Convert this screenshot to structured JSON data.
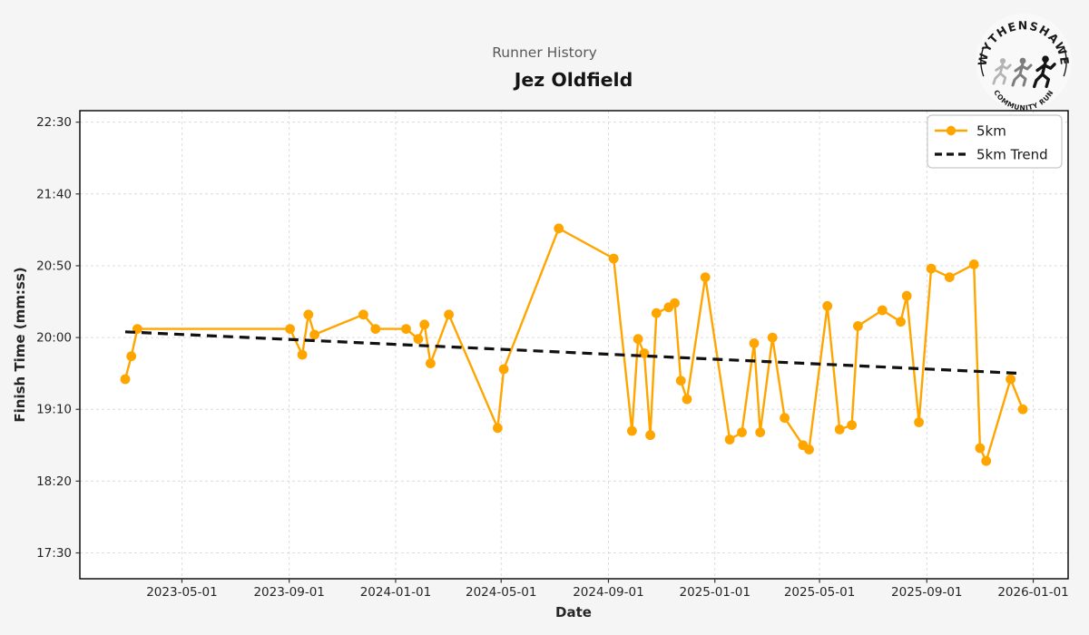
{
  "header": {
    "suptitle": "Runner History",
    "title": "Jez Oldfield"
  },
  "logo": {
    "top_text": "WYTHENSHAWE",
    "bottom_text": "COMMUNITY RUN"
  },
  "legend": {
    "items": [
      {
        "label": "5km",
        "style": "line-marker",
        "color": "#FFA500"
      },
      {
        "label": "5km Trend",
        "style": "dashed",
        "color": "#000000"
      }
    ]
  },
  "colors": {
    "figure_background": "#f5f5f6",
    "plot_background": "#ffffff",
    "grid": "#dcdcdc",
    "spine": "#000000",
    "series": "#FFA500",
    "trend": "#111111",
    "suptitle": "#595959",
    "title": "#141414"
  },
  "chart_data": {
    "type": "line",
    "title": "Jez Oldfield",
    "subtitle": "Runner History",
    "xlabel": "Date",
    "ylabel": "Finish Time (mm:ss)",
    "grid": true,
    "legend_position": "upper right",
    "x_ticks": [
      "2023-05-01",
      "2023-09-01",
      "2024-01-01",
      "2024-05-01",
      "2024-09-01",
      "2025-01-01",
      "2025-05-01",
      "2025-09-01",
      "2026-01-01"
    ],
    "y_ticks": [
      "17:30",
      "18:20",
      "19:10",
      "20:00",
      "20:50",
      "21:40",
      "22:30"
    ],
    "xlim": [
      "2023-01-04",
      "2026-02-10"
    ],
    "ylim_mmss": [
      "17:12",
      "22:38"
    ],
    "series": [
      {
        "name": "5km",
        "color": "#FFA500",
        "style": "solid-markers",
        "points": [
          [
            "2023-02-25",
            "19:31"
          ],
          [
            "2023-03-04",
            "19:47"
          ],
          [
            "2023-03-11",
            "20:06"
          ],
          [
            "2023-09-02",
            "20:06"
          ],
          [
            "2023-09-16",
            "19:48"
          ],
          [
            "2023-09-23",
            "20:16"
          ],
          [
            "2023-09-30",
            "20:02"
          ],
          [
            "2023-11-25",
            "20:16"
          ],
          [
            "2023-12-09",
            "20:06"
          ],
          [
            "2024-01-13",
            "20:06"
          ],
          [
            "2024-01-27",
            "19:59"
          ],
          [
            "2024-02-03",
            "20:09"
          ],
          [
            "2024-02-10",
            "19:42"
          ],
          [
            "2024-03-02",
            "20:16"
          ],
          [
            "2024-04-27",
            "18:57"
          ],
          [
            "2024-05-04",
            "19:38"
          ],
          [
            "2024-07-06",
            "21:16"
          ],
          [
            "2024-09-07",
            "20:55"
          ],
          [
            "2024-09-28",
            "18:55"
          ],
          [
            "2024-10-05",
            "19:59"
          ],
          [
            "2024-10-12",
            "19:49"
          ],
          [
            "2024-10-19",
            "18:52"
          ],
          [
            "2024-10-26",
            "20:17"
          ],
          [
            "2024-11-09",
            "20:21"
          ],
          [
            "2024-11-16",
            "20:24"
          ],
          [
            "2024-11-23",
            "19:30"
          ],
          [
            "2024-11-30",
            "19:17"
          ],
          [
            "2024-12-21",
            "20:42"
          ],
          [
            "2025-01-18",
            "18:49"
          ],
          [
            "2025-02-01",
            "18:54"
          ],
          [
            "2025-02-15",
            "19:56"
          ],
          [
            "2025-02-22",
            "18:54"
          ],
          [
            "2025-03-08",
            "20:00"
          ],
          [
            "2025-03-22",
            "19:04"
          ],
          [
            "2025-04-12",
            "18:45"
          ],
          [
            "2025-04-19",
            "18:42"
          ],
          [
            "2025-05-10",
            "20:22"
          ],
          [
            "2025-05-24",
            "18:56"
          ],
          [
            "2025-06-07",
            "18:59"
          ],
          [
            "2025-06-14",
            "20:08"
          ],
          [
            "2025-07-12",
            "20:19"
          ],
          [
            "2025-08-02",
            "20:11"
          ],
          [
            "2025-08-09",
            "20:29"
          ],
          [
            "2025-08-23",
            "19:01"
          ],
          [
            "2025-09-06",
            "20:48"
          ],
          [
            "2025-09-27",
            "20:42"
          ],
          [
            "2025-10-25",
            "20:51"
          ],
          [
            "2025-11-01",
            "18:43"
          ],
          [
            "2025-11-08",
            "18:34"
          ],
          [
            "2025-12-06",
            "19:31"
          ],
          [
            "2025-12-20",
            "19:10"
          ]
        ]
      },
      {
        "name": "5km Trend",
        "color": "#111111",
        "style": "dashed",
        "points": [
          [
            "2023-02-25",
            "20:04"
          ],
          [
            "2025-12-20",
            "19:35"
          ]
        ]
      }
    ]
  }
}
